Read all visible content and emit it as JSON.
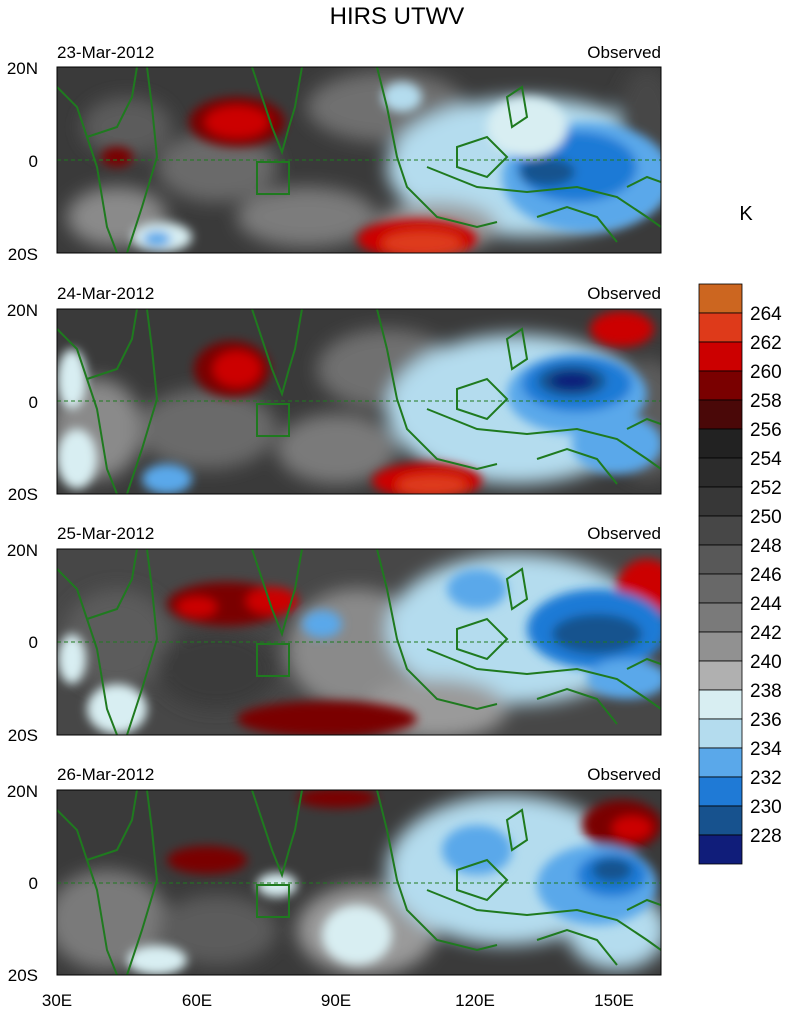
{
  "title": "HIRS UTWV",
  "unit_label": "K",
  "panel_tag": "Observed",
  "panels": [
    {
      "date": "23-Mar-2012"
    },
    {
      "date": "24-Mar-2012"
    },
    {
      "date": "25-Mar-2012"
    },
    {
      "date": "26-Mar-2012"
    }
  ],
  "lat_ticks": [
    "20N",
    "0",
    "20S"
  ],
  "lon_ticks": [
    "30E",
    "60E",
    "90E",
    "120E",
    "150E"
  ],
  "map_extent": {
    "lon": [
      30,
      160
    ],
    "lat": [
      -20,
      20
    ]
  },
  "colorbar": {
    "labels": [
      "264",
      "262",
      "260",
      "258",
      "256",
      "254",
      "252",
      "250",
      "248",
      "246",
      "244",
      "242",
      "240",
      "238",
      "236",
      "234",
      "232",
      "230",
      "228"
    ],
    "colors": [
      "#cc6620",
      "#de3a1a",
      "#cc0000",
      "#7a0000",
      "#4a0808",
      "#222222",
      "#2c2c2c",
      "#373737",
      "#474747",
      "#585858",
      "#686868",
      "#7a7a7a",
      "#919191",
      "#b0b0b0",
      "#d8eef2",
      "#b4dcee",
      "#5aa8ea",
      "#1f7ad6",
      "#17528e",
      "#101d7a"
    ]
  },
  "coast_color": "#1f7a1f"
}
